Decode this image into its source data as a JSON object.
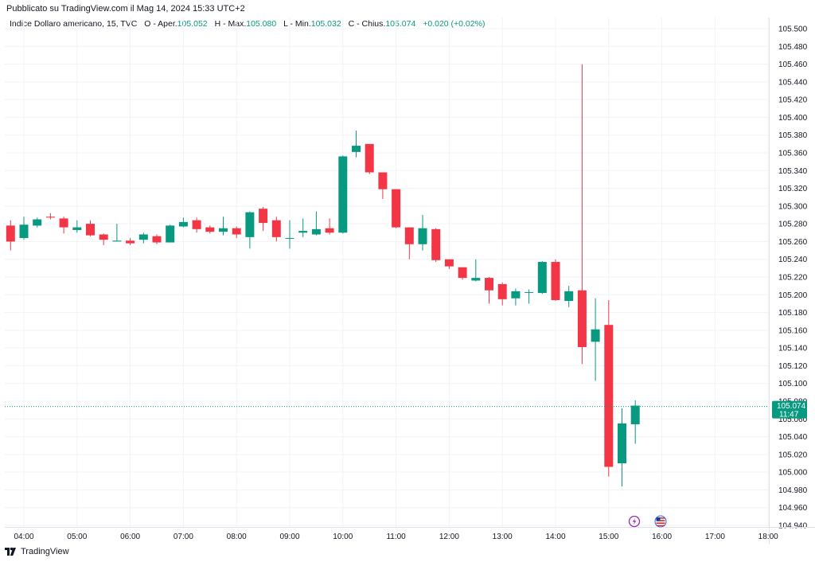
{
  "published": "Pubblicato su TradingView.com il Mag 14, 2024 15:33 UTC+2",
  "legend": {
    "symbol": "Indice Dollaro americano, 15, TVC",
    "open_label": "O - Aper.",
    "open": "105.052",
    "high_label": "H - Max.",
    "high": "105.080",
    "low_label": "L - Min.",
    "low": "105.032",
    "close_label": "C - Chius.",
    "close": "105.074",
    "change": "+0.020 (+0.02%)"
  },
  "last_price": {
    "value": "105.074",
    "countdown": "11:47"
  },
  "footer": {
    "brand": "TradingView"
  },
  "colors": {
    "up": "#089981",
    "down": "#f23645",
    "grid": "#f0f3fa"
  },
  "event_icons": [
    "lightning-icon",
    "us-flag-icon"
  ],
  "chart_data": {
    "type": "candlestick",
    "interval_minutes": 15,
    "ylim": [
      104.935,
      105.515
    ],
    "y_ticks": [
      "105.500",
      "105.480",
      "105.460",
      "105.440",
      "105.420",
      "105.400",
      "105.380",
      "105.360",
      "105.340",
      "105.320",
      "105.300",
      "105.280",
      "105.260",
      "105.240",
      "105.220",
      "105.200",
      "105.180",
      "105.160",
      "105.140",
      "105.120",
      "105.100",
      "105.080",
      "105.060",
      "105.040",
      "105.020",
      "105.000",
      "104.980",
      "104.960",
      "104.940"
    ],
    "x_ticks": [
      {
        "label": "04:00",
        "hour": 4
      },
      {
        "label": "05:00",
        "hour": 5
      },
      {
        "label": "06:00",
        "hour": 6
      },
      {
        "label": "07:00",
        "hour": 7
      },
      {
        "label": "08:00",
        "hour": 8
      },
      {
        "label": "09:00",
        "hour": 9
      },
      {
        "label": "10:00",
        "hour": 10
      },
      {
        "label": "11:00",
        "hour": 11
      },
      {
        "label": "12:00",
        "hour": 12
      },
      {
        "label": "13:00",
        "hour": 13
      },
      {
        "label": "14:00",
        "hour": 14
      },
      {
        "label": "15:00",
        "hour": 15
      },
      {
        "label": "16:00",
        "hour": 16
      },
      {
        "label": "17:00",
        "hour": 17
      },
      {
        "label": "18:00",
        "hour": 18
      }
    ],
    "candles": [
      {
        "t": "03:45",
        "o": 105.278,
        "h": 105.284,
        "l": 105.25,
        "c": 105.26
      },
      {
        "t": "04:00",
        "o": 105.264,
        "h": 105.288,
        "l": 105.262,
        "c": 105.279
      },
      {
        "t": "04:15",
        "o": 105.278,
        "h": 105.287,
        "l": 105.276,
        "c": 105.285
      },
      {
        "t": "04:30",
        "o": 105.288,
        "h": 105.292,
        "l": 105.285,
        "c": 105.287
      },
      {
        "t": "04:45",
        "o": 105.286,
        "h": 105.288,
        "l": 105.269,
        "c": 105.276
      },
      {
        "t": "05:00",
        "o": 105.273,
        "h": 105.284,
        "l": 105.27,
        "c": 105.276
      },
      {
        "t": "05:15",
        "o": 105.28,
        "h": 105.284,
        "l": 105.266,
        "c": 105.267
      },
      {
        "t": "05:30",
        "o": 105.268,
        "h": 105.269,
        "l": 105.256,
        "c": 105.262
      },
      {
        "t": "05:45",
        "o": 105.26,
        "h": 105.28,
        "l": 105.26,
        "c": 105.261
      },
      {
        "t": "06:00",
        "o": 105.261,
        "h": 105.264,
        "l": 105.256,
        "c": 105.258
      },
      {
        "t": "06:15",
        "o": 105.262,
        "h": 105.27,
        "l": 105.258,
        "c": 105.268
      },
      {
        "t": "06:30",
        "o": 105.266,
        "h": 105.268,
        "l": 105.257,
        "c": 105.259
      },
      {
        "t": "06:45",
        "o": 105.259,
        "h": 105.279,
        "l": 105.259,
        "c": 105.278
      },
      {
        "t": "07:00",
        "o": 105.277,
        "h": 105.287,
        "l": 105.276,
        "c": 105.282
      },
      {
        "t": "07:15",
        "o": 105.284,
        "h": 105.287,
        "l": 105.27,
        "c": 105.274
      },
      {
        "t": "07:30",
        "o": 105.276,
        "h": 105.278,
        "l": 105.269,
        "c": 105.271
      },
      {
        "t": "07:45",
        "o": 105.271,
        "h": 105.288,
        "l": 105.267,
        "c": 105.275
      },
      {
        "t": "08:00",
        "o": 105.275,
        "h": 105.277,
        "l": 105.264,
        "c": 105.268
      },
      {
        "t": "08:15",
        "o": 105.265,
        "h": 105.294,
        "l": 105.252,
        "c": 105.293
      },
      {
        "t": "08:30",
        "o": 105.297,
        "h": 105.299,
        "l": 105.272,
        "c": 105.281
      },
      {
        "t": "08:45",
        "o": 105.284,
        "h": 105.288,
        "l": 105.26,
        "c": 105.265
      },
      {
        "t": "09:00",
        "o": 105.264,
        "h": 105.284,
        "l": 105.252,
        "c": 105.264
      },
      {
        "t": "09:15",
        "o": 105.27,
        "h": 105.286,
        "l": 105.265,
        "c": 105.272
      },
      {
        "t": "09:30",
        "o": 105.268,
        "h": 105.294,
        "l": 105.267,
        "c": 105.274
      },
      {
        "t": "09:45",
        "o": 105.275,
        "h": 105.286,
        "l": 105.268,
        "c": 105.27
      },
      {
        "t": "10:00",
        "o": 105.27,
        "h": 105.357,
        "l": 105.269,
        "c": 105.356
      },
      {
        "t": "10:15",
        "o": 105.361,
        "h": 105.385,
        "l": 105.355,
        "c": 105.368
      },
      {
        "t": "10:30",
        "o": 105.37,
        "h": 105.37,
        "l": 105.336,
        "c": 105.338
      },
      {
        "t": "10:45",
        "o": 105.338,
        "h": 105.338,
        "l": 105.308,
        "c": 105.319
      },
      {
        "t": "11:00",
        "o": 105.319,
        "h": 105.319,
        "l": 105.275,
        "c": 105.276
      },
      {
        "t": "11:15",
        "o": 105.276,
        "h": 105.276,
        "l": 105.24,
        "c": 105.257
      },
      {
        "t": "11:30",
        "o": 105.257,
        "h": 105.29,
        "l": 105.25,
        "c": 105.275
      },
      {
        "t": "11:45",
        "o": 105.274,
        "h": 105.275,
        "l": 105.237,
        "c": 105.239
      },
      {
        "t": "12:00",
        "o": 105.24,
        "h": 105.24,
        "l": 105.229,
        "c": 105.232
      },
      {
        "t": "12:15",
        "o": 105.231,
        "h": 105.231,
        "l": 105.217,
        "c": 105.219
      },
      {
        "t": "12:30",
        "o": 105.216,
        "h": 105.24,
        "l": 105.215,
        "c": 105.219
      },
      {
        "t": "12:45",
        "o": 105.219,
        "h": 105.22,
        "l": 105.19,
        "c": 105.205
      },
      {
        "t": "13:00",
        "o": 105.212,
        "h": 105.214,
        "l": 105.188,
        "c": 105.195
      },
      {
        "t": "13:15",
        "o": 105.196,
        "h": 105.207,
        "l": 105.188,
        "c": 105.204
      },
      {
        "t": "13:30",
        "o": 105.203,
        "h": 105.206,
        "l": 105.19,
        "c": 105.203
      },
      {
        "t": "13:45",
        "o": 105.202,
        "h": 105.238,
        "l": 105.201,
        "c": 105.237
      },
      {
        "t": "14:00",
        "o": 105.237,
        "h": 105.24,
        "l": 105.193,
        "c": 105.194
      },
      {
        "t": "14:15",
        "o": 105.193,
        "h": 105.21,
        "l": 105.186,
        "c": 105.204
      },
      {
        "t": "14:30",
        "o": 105.205,
        "h": 105.46,
        "l": 105.122,
        "c": 105.141
      },
      {
        "t": "14:45",
        "o": 105.147,
        "h": 105.196,
        "l": 105.103,
        "c": 105.161
      },
      {
        "t": "15:00",
        "o": 105.166,
        "h": 105.194,
        "l": 104.995,
        "c": 105.006
      },
      {
        "t": "15:15",
        "o": 105.01,
        "h": 105.072,
        "l": 104.984,
        "c": 105.055
      },
      {
        "t": "15:30",
        "o": 105.054,
        "h": 105.081,
        "l": 105.032,
        "c": 105.075
      }
    ]
  }
}
